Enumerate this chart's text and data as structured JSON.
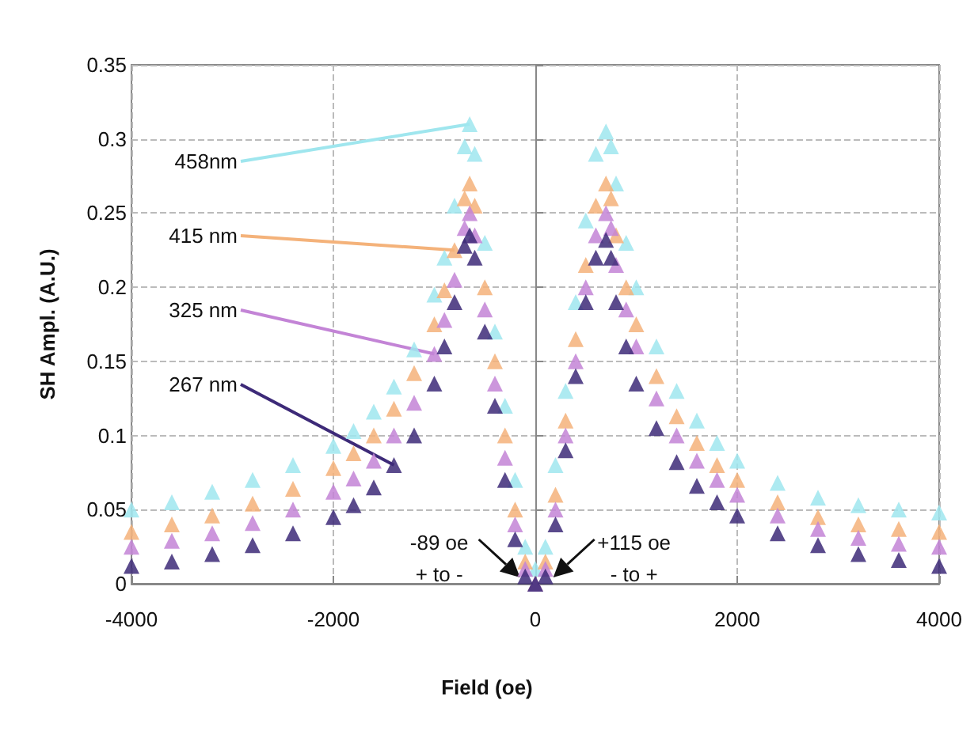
{
  "chart_data": {
    "type": "scatter",
    "xlabel": "Field (oe)",
    "ylabel": "SH Ampl. (A.U.)",
    "x": [
      -4000,
      -3600,
      -3200,
      -2800,
      -2400,
      -2000,
      -1800,
      -1600,
      -1400,
      -1200,
      -1000,
      -900,
      -800,
      -700,
      -650,
      -600,
      -500,
      -400,
      -300,
      -200,
      -100,
      0,
      100,
      200,
      300,
      400,
      500,
      600,
      700,
      750,
      800,
      900,
      1000,
      1200,
      1400,
      1600,
      1800,
      2000,
      2400,
      2800,
      3200,
      3600,
      4000
    ],
    "series": [
      {
        "name": "458nm",
        "color": "#9fe6ee",
        "values": [
          0.05,
          0.055,
          0.062,
          0.07,
          0.08,
          0.093,
          0.103,
          0.116,
          0.133,
          0.158,
          0.195,
          0.22,
          0.255,
          0.295,
          0.31,
          0.29,
          0.23,
          0.17,
          0.12,
          0.07,
          0.025,
          0.01,
          0.025,
          0.08,
          0.13,
          0.19,
          0.245,
          0.29,
          0.305,
          0.295,
          0.27,
          0.23,
          0.2,
          0.16,
          0.13,
          0.11,
          0.095,
          0.083,
          0.068,
          0.058,
          0.053,
          0.05,
          0.048
        ]
      },
      {
        "name": "415 nm",
        "color": "#f4b27a",
        "values": [
          0.035,
          0.04,
          0.046,
          0.054,
          0.064,
          0.078,
          0.088,
          0.1,
          0.118,
          0.142,
          0.175,
          0.198,
          0.225,
          0.26,
          0.27,
          0.255,
          0.2,
          0.15,
          0.1,
          0.05,
          0.015,
          0.0,
          0.015,
          0.06,
          0.11,
          0.165,
          0.215,
          0.255,
          0.27,
          0.26,
          0.235,
          0.2,
          0.175,
          0.14,
          0.113,
          0.095,
          0.08,
          0.07,
          0.055,
          0.045,
          0.04,
          0.037,
          0.035
        ]
      },
      {
        "name": "325 nm",
        "color": "#c384d6",
        "values": [
          0.025,
          0.029,
          0.034,
          0.041,
          0.05,
          0.062,
          0.071,
          0.083,
          0.1,
          0.122,
          0.155,
          0.178,
          0.205,
          0.24,
          0.25,
          0.235,
          0.185,
          0.135,
          0.085,
          0.04,
          0.01,
          0.0,
          0.01,
          0.05,
          0.1,
          0.15,
          0.2,
          0.235,
          0.25,
          0.24,
          0.215,
          0.185,
          0.16,
          0.125,
          0.1,
          0.083,
          0.07,
          0.06,
          0.046,
          0.037,
          0.031,
          0.027,
          0.025
        ]
      },
      {
        "name": "267 nm",
        "color": "#3d2a78",
        "values": [
          0.012,
          0.015,
          0.02,
          0.026,
          0.034,
          0.045,
          0.053,
          0.065,
          0.08,
          0.1,
          0.135,
          0.16,
          0.19,
          0.228,
          0.235,
          0.22,
          0.17,
          0.12,
          0.07,
          0.03,
          0.005,
          0.0,
          0.005,
          0.04,
          0.09,
          0.14,
          0.19,
          0.22,
          0.232,
          0.22,
          0.19,
          0.16,
          0.135,
          0.105,
          0.082,
          0.066,
          0.055,
          0.046,
          0.034,
          0.026,
          0.02,
          0.016,
          0.012
        ]
      }
    ],
    "xlim": [
      -4000,
      4000
    ],
    "xticks": [
      -4000,
      -2000,
      0,
      2000,
      4000
    ],
    "ylim": [
      0,
      0.35
    ],
    "yticks": [
      0,
      0.05,
      0.1,
      0.15,
      0.2,
      0.25,
      0.3,
      0.35
    ],
    "annotations": [
      {
        "text": "-89 oe\n+ to -",
        "x": -89,
        "y": 0
      },
      {
        "text": "+115 oe\n- to +",
        "x": 115,
        "y": 0
      }
    ],
    "grid": true,
    "legend": false,
    "marker": "triangle"
  }
}
